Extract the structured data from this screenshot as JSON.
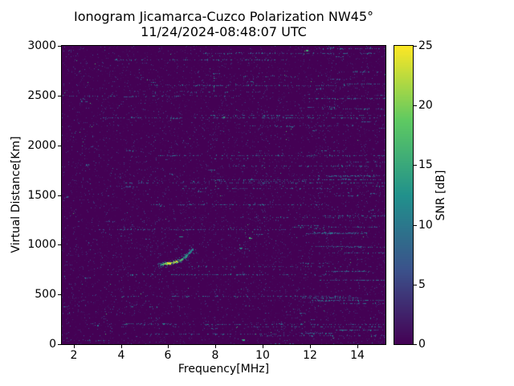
{
  "title": {
    "line1": "Ionogram Jicamarca-Cuzco Polarization NW45°",
    "line2": "11/24/2024-08:48:07 UTC"
  },
  "axes": {
    "xlabel": "Frequency[MHz]",
    "ylabel": "Virtual Distance[Km]",
    "x_ticks": [
      2,
      4,
      6,
      8,
      10,
      12,
      14
    ],
    "y_ticks": [
      0,
      500,
      1000,
      1500,
      2000,
      2500,
      3000
    ],
    "x_range": [
      1.5,
      15.2
    ],
    "y_range": [
      0,
      3000
    ]
  },
  "colorbar": {
    "label": "SNR [dB]",
    "ticks": [
      0,
      5,
      10,
      15,
      20,
      25
    ],
    "range": [
      0,
      25
    ]
  },
  "chart_data": {
    "type": "heatmap",
    "title": "Ionogram Jicamarca-Cuzco Polarization NW45° 11/24/2024-08:48:07 UTC",
    "xlabel": "Frequency[MHz]",
    "ylabel": "Virtual Distance[Km]",
    "xlim": [
      1.5,
      15.2
    ],
    "ylim": [
      0,
      3000
    ],
    "colorbar_label": "SNR [dB]",
    "snr_range_db": [
      0,
      25
    ],
    "colormap": "viridis",
    "colormap_stops": [
      [
        0,
        "#440154"
      ],
      [
        0.25,
        "#3b528b"
      ],
      [
        0.5,
        "#21918c"
      ],
      [
        0.75,
        "#5ec962"
      ],
      [
        1,
        "#fde725"
      ]
    ],
    "background_snr_db": 0,
    "echo_trace": {
      "description": "ionospheric echo trace",
      "points_freq_mhz": [
        5.65,
        5.8,
        5.95,
        6.1,
        6.25,
        6.4,
        6.55,
        6.7,
        6.85,
        6.95,
        7.05
      ],
      "points_vdist_km": [
        795,
        805,
        810,
        815,
        820,
        832,
        848,
        872,
        905,
        935,
        960
      ],
      "points_snr_db": [
        12,
        18,
        24,
        25,
        24,
        22,
        18,
        15,
        13,
        11,
        10
      ]
    },
    "noise": {
      "speckle_density": 0.06,
      "rfi_streak_rows_km": [
        2920,
        2860,
        2600,
        2300,
        2280,
        1900,
        1650,
        1620,
        1400,
        1150,
        700,
        480,
        200,
        100
      ],
      "dense_rfi_freq_band_mhz": [
        11.5,
        15.2
      ]
    },
    "bright_spots": [
      {
        "f": 9.2,
        "d": 40
      },
      {
        "f": 9.5,
        "d": 1060
      },
      {
        "f": 8.35,
        "d": 2280
      },
      {
        "f": 11.85,
        "d": 2950
      },
      {
        "f": 6.55,
        "d": 1080
      },
      {
        "f": 9.05,
        "d": 960
      }
    ],
    "vertical_feature": {
      "f": 7.95,
      "d_from": 2540,
      "d_to": 2720
    },
    "seed": 42
  }
}
